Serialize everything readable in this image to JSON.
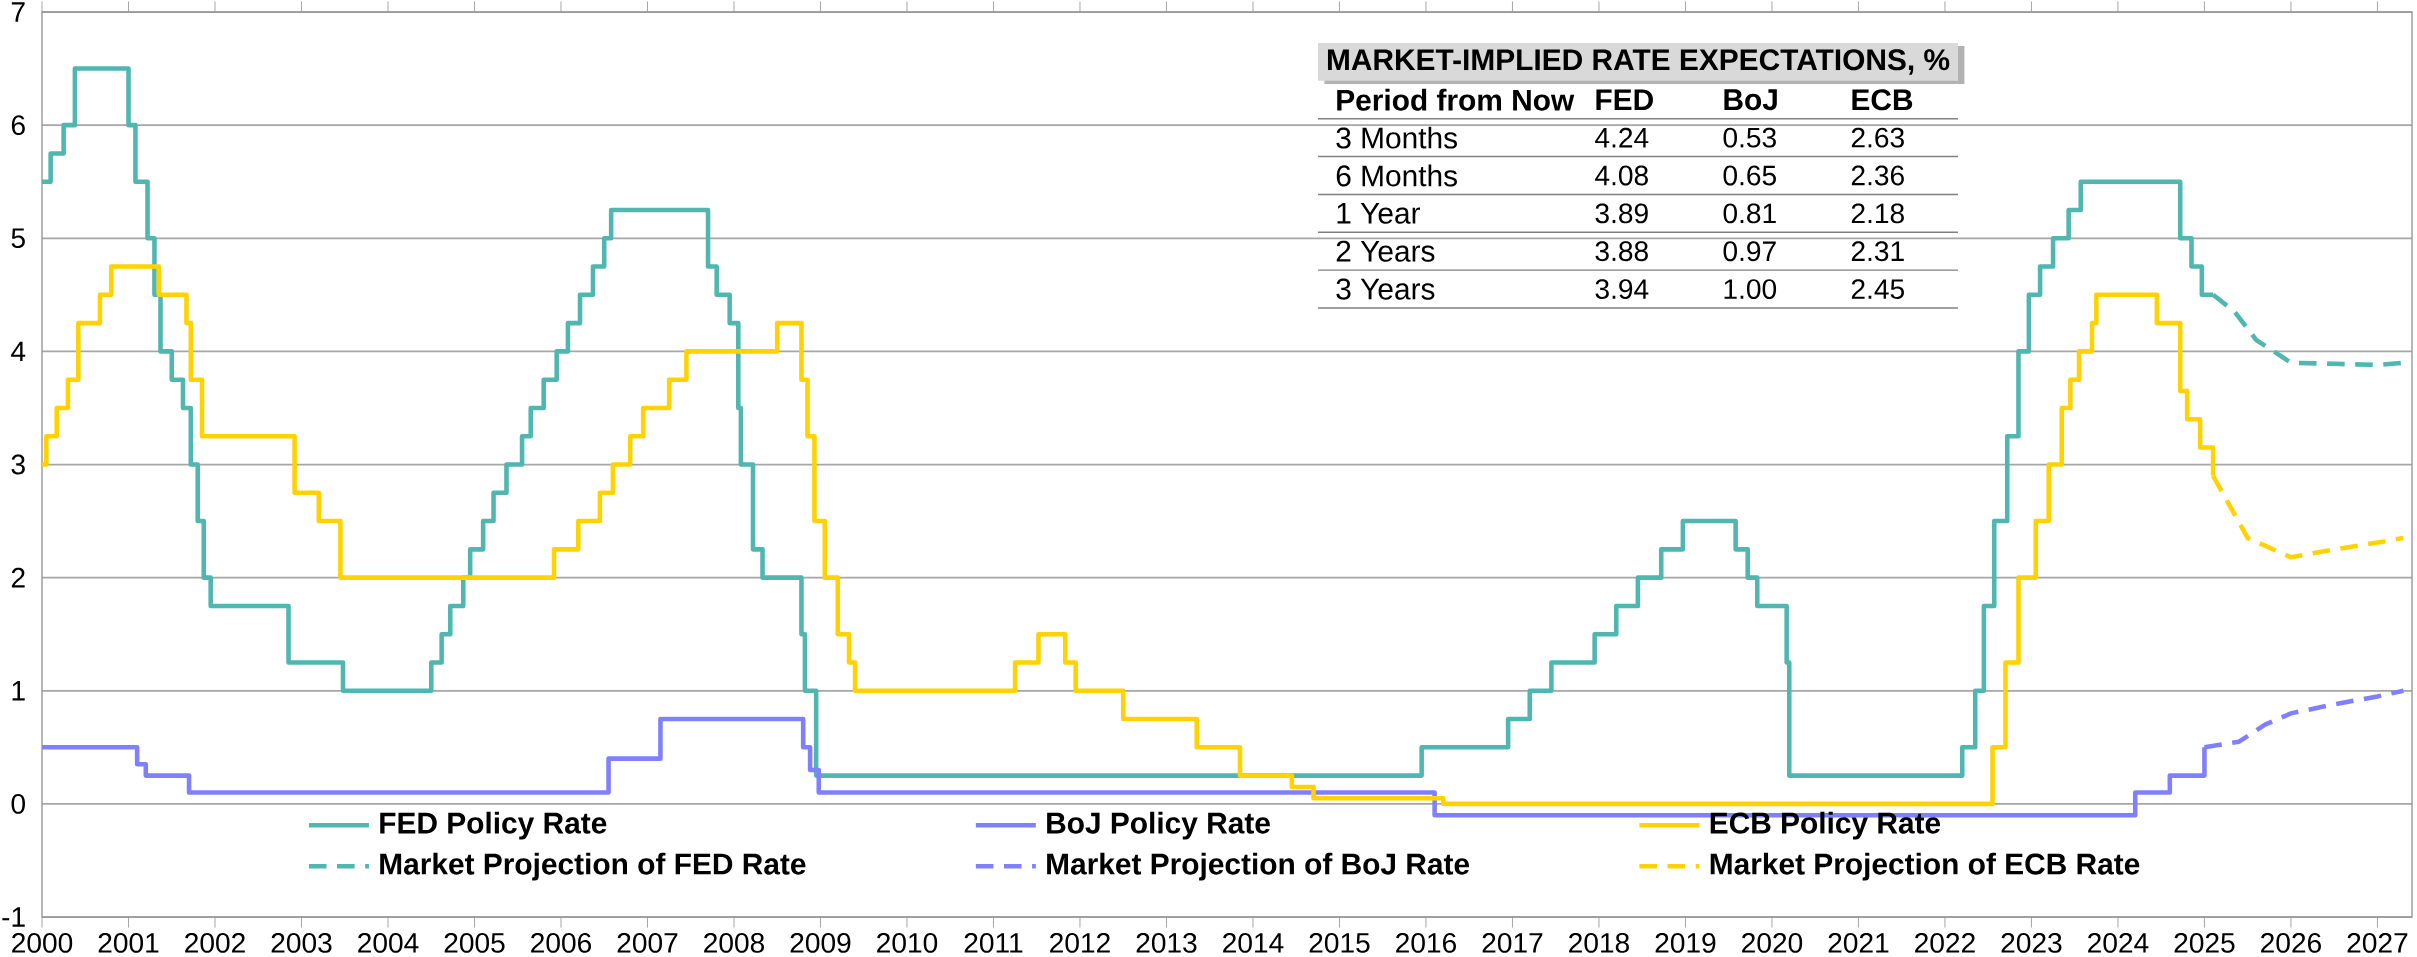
{
  "chart_data": [
    {
      "type": "step",
      "xlim": [
        2000,
        2027.4
      ],
      "ylim": [
        -1,
        7
      ],
      "xticks": [
        2000,
        2001,
        2002,
        2003,
        2004,
        2005,
        2006,
        2007,
        2008,
        2009,
        2010,
        2011,
        2012,
        2013,
        2014,
        2015,
        2016,
        2017,
        2018,
        2019,
        2020,
        2021,
        2022,
        2023,
        2024,
        2025,
        2026,
        2027
      ],
      "yticks": [
        -1,
        0,
        1,
        2,
        3,
        4,
        5,
        6,
        7
      ],
      "grid": "y",
      "legend": "bottom",
      "marker": "none",
      "series": [
        {
          "name": "FED Policy Rate",
          "color": "#4fb7b0",
          "type": "step",
          "line_style": "solid",
          "x": [
            2000.0,
            2000.1,
            2000.25,
            2000.38,
            2001.0,
            2001.08,
            2001.22,
            2001.3,
            2001.37,
            2001.5,
            2001.63,
            2001.72,
            2001.8,
            2001.87,
            2001.95,
            2002.85,
            2003.48,
            2004.5,
            2004.62,
            2004.72,
            2004.87,
            2004.95,
            2005.1,
            2005.22,
            2005.37,
            2005.55,
            2005.65,
            2005.8,
            2005.95,
            2006.08,
            2006.22,
            2006.37,
            2006.5,
            2006.58,
            2007.7,
            2007.8,
            2007.95,
            2008.05,
            2008.08,
            2008.22,
            2008.33,
            2008.78,
            2008.82,
            2008.95,
            2015.95,
            2016.95,
            2017.2,
            2017.45,
            2017.95,
            2018.2,
            2018.45,
            2018.72,
            2018.97,
            2019.58,
            2019.72,
            2019.83,
            2020.17,
            2020.2,
            2022.2,
            2022.35,
            2022.45,
            2022.57,
            2022.72,
            2022.85,
            2022.97,
            2023.1,
            2023.25,
            2023.43,
            2023.57,
            2024.72,
            2024.85,
            2024.97,
            2025.1
          ],
          "values": [
            5.5,
            5.75,
            6.0,
            6.5,
            6.0,
            5.5,
            5.0,
            4.5,
            4.0,
            3.75,
            3.5,
            3.0,
            2.5,
            2.0,
            1.75,
            1.25,
            1.0,
            1.25,
            1.5,
            1.75,
            2.0,
            2.25,
            2.5,
            2.75,
            3.0,
            3.25,
            3.5,
            3.75,
            4.0,
            4.25,
            4.5,
            4.75,
            5.0,
            5.25,
            4.75,
            4.5,
            4.25,
            3.5,
            3.0,
            2.25,
            2.0,
            1.5,
            1.0,
            0.25,
            0.5,
            0.75,
            1.0,
            1.25,
            1.5,
            1.75,
            2.0,
            2.25,
            2.5,
            2.25,
            2.0,
            1.75,
            1.25,
            0.25,
            0.5,
            1.0,
            1.75,
            2.5,
            3.25,
            4.0,
            4.5,
            4.75,
            5.0,
            5.25,
            5.5,
            5.0,
            4.75,
            4.5,
            4.5
          ]
        },
        {
          "name": "BoJ Policy Rate",
          "color": "#8080ff",
          "type": "step",
          "line_style": "solid",
          "x": [
            2000.0,
            2001.1,
            2001.2,
            2001.7,
            2006.55,
            2007.15,
            2008.8,
            2008.88,
            2008.98,
            2016.1,
            2024.2,
            2024.6,
            2025.0
          ],
          "values": [
            0.5,
            0.35,
            0.25,
            0.1,
            0.4,
            0.75,
            0.5,
            0.3,
            0.1,
            -0.1,
            0.1,
            0.25,
            0.5
          ]
        },
        {
          "name": "ECB Policy Rate",
          "color": "#ffd200",
          "type": "step",
          "line_style": "solid",
          "x": [
            2000.0,
            2000.05,
            2000.17,
            2000.3,
            2000.42,
            2000.67,
            2000.8,
            2001.35,
            2001.67,
            2001.72,
            2001.85,
            2002.92,
            2003.2,
            2003.45,
            2005.92,
            2006.2,
            2006.45,
            2006.6,
            2006.8,
            2006.95,
            2007.25,
            2007.45,
            2008.5,
            2008.78,
            2008.85,
            2008.93,
            2009.05,
            2009.2,
            2009.33,
            2009.4,
            2011.25,
            2011.52,
            2011.83,
            2011.95,
            2012.5,
            2013.35,
            2013.85,
            2014.45,
            2014.7,
            2016.2,
            2022.55,
            2022.7,
            2022.85,
            2023.05,
            2023.2,
            2023.35,
            2023.45,
            2023.55,
            2023.7,
            2023.75,
            2024.45,
            2024.72,
            2024.8,
            2024.95,
            2025.1
          ],
          "values": [
            3.0,
            3.25,
            3.5,
            3.75,
            4.25,
            4.5,
            4.75,
            4.5,
            4.25,
            3.75,
            3.25,
            2.75,
            2.5,
            2.0,
            2.25,
            2.5,
            2.75,
            3.0,
            3.25,
            3.5,
            3.75,
            4.0,
            4.25,
            3.75,
            3.25,
            2.5,
            2.0,
            1.5,
            1.25,
            1.0,
            1.25,
            1.5,
            1.25,
            1.0,
            0.75,
            0.5,
            0.25,
            0.15,
            0.05,
            0.0,
            0.5,
            1.25,
            2.0,
            2.5,
            3.0,
            3.5,
            3.75,
            4.0,
            4.25,
            4.5,
            4.25,
            3.65,
            3.4,
            3.15,
            2.9
          ]
        },
        {
          "name": "Market Projection of FED Rate",
          "color": "#4fb7b0",
          "type": "line",
          "line_style": "dashed",
          "x": [
            2025.1,
            2025.35,
            2025.6,
            2026.0,
            2026.5,
            2027.0,
            2027.3
          ],
          "values": [
            4.5,
            4.35,
            4.1,
            3.9,
            3.89,
            3.88,
            3.9
          ]
        },
        {
          "name": "Market Projection of BoJ Rate",
          "color": "#8080ff",
          "type": "line",
          "line_style": "dashed",
          "x": [
            2025.0,
            2025.4,
            2025.7,
            2026.0,
            2026.5,
            2027.0,
            2027.3
          ],
          "values": [
            0.5,
            0.55,
            0.7,
            0.8,
            0.88,
            0.95,
            1.0
          ]
        },
        {
          "name": "Market Projection of ECB Rate",
          "color": "#ffd200",
          "type": "line",
          "line_style": "dashed",
          "x": [
            2025.1,
            2025.5,
            2026.0,
            2026.5,
            2027.0,
            2027.3
          ],
          "values": [
            2.9,
            2.35,
            2.18,
            2.25,
            2.31,
            2.35
          ]
        }
      ]
    },
    {
      "type": "other",
      "title": "MARKET-IMPLIED RATE EXPECTATIONS, %",
      "ylabel": "Period from Now",
      "categories": [
        "FED",
        "BoJ",
        "ECB"
      ],
      "y_categories": [
        "3 Months",
        "6 Months",
        "1 Year",
        "2 Years",
        "3 Years"
      ],
      "cell_labels": [
        [
          "4.24",
          "0.53",
          "2.63"
        ],
        [
          "4.08",
          "0.65",
          "2.36"
        ],
        [
          "3.89",
          "0.81",
          "2.18"
        ],
        [
          "3.88",
          "0.97",
          "2.31"
        ],
        [
          "3.94",
          "1.00",
          "2.45"
        ]
      ]
    }
  ]
}
